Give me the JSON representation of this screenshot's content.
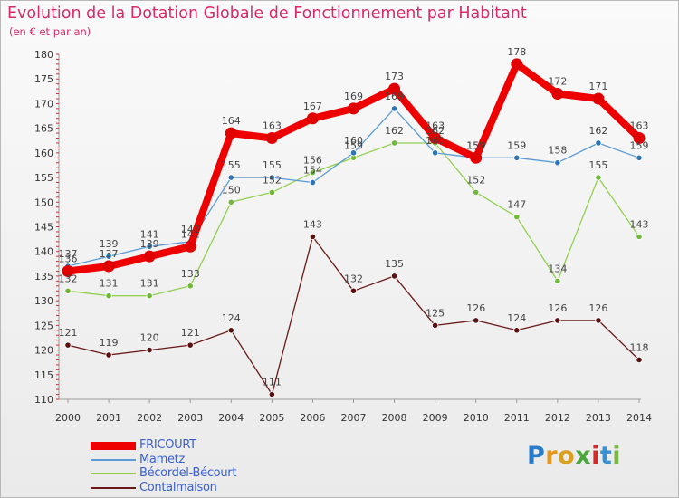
{
  "title": "Evolution de la Dotation Globale de Fonctionnement par Habitant",
  "subtitle": "(en € et par an)",
  "logo": {
    "letters": [
      "P",
      "r",
      "o",
      "x",
      "i",
      "t",
      "i"
    ]
  },
  "chart_data": {
    "type": "line",
    "title": "Evolution de la Dotation Globale de Fonctionnement par Habitant",
    "subtitle": "(en € et par an)",
    "xlabel": "",
    "ylabel": "",
    "x": [
      "2000",
      "2001",
      "2002",
      "2003",
      "2004",
      "2005",
      "2006",
      "2007",
      "2008",
      "2009",
      "2010",
      "2011",
      "2012",
      "2013",
      "2014"
    ],
    "ylim": [
      110,
      180
    ],
    "yticks": [
      "110",
      "115",
      "120",
      "125",
      "130",
      "135",
      "140",
      "145",
      "150",
      "155",
      "160",
      "165",
      "170",
      "175",
      "180"
    ],
    "grid": false,
    "legend_position": "bottom-left",
    "series": [
      {
        "name": "FRICOURT",
        "color": "#ee0000",
        "marker": "#e00000",
        "width": 8,
        "values": [
          136,
          137,
          139,
          141,
          164,
          163,
          167,
          169,
          173,
          163,
          159,
          178,
          172,
          171,
          163
        ]
      },
      {
        "name": "Mametz",
        "color": "#5b9bd5",
        "marker": "#2e75b6",
        "width": 1.3,
        "values": [
          137,
          139,
          141,
          142,
          155,
          155,
          154,
          160,
          169,
          160,
          159,
          159,
          158,
          162,
          159
        ]
      },
      {
        "name": "Bécordel-Bécourt",
        "color": "#92d050",
        "marker": "#70b83a",
        "width": 1.3,
        "values": [
          132,
          131,
          131,
          133,
          150,
          152,
          156,
          159,
          162,
          162,
          152,
          147,
          134,
          155,
          143
        ]
      },
      {
        "name": "Contalmaison",
        "color": "#6b1a1a",
        "marker": "#5a1010",
        "width": 1.3,
        "values": [
          121,
          119,
          120,
          121,
          124,
          111,
          143,
          132,
          135,
          125,
          126,
          124,
          126,
          126,
          118
        ]
      }
    ]
  }
}
